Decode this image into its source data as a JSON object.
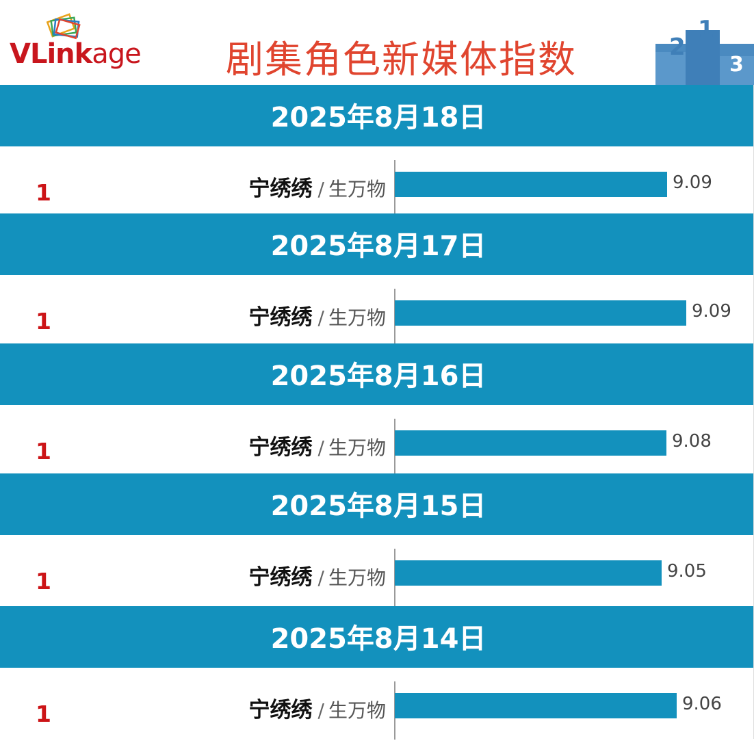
{
  "header": {
    "logo_text_bold": "VLink",
    "logo_text_rest": "age",
    "title": "剧集角色新媒体指数",
    "podium_icon": "podium-icon",
    "podium_digits": [
      "2",
      "1",
      "3"
    ]
  },
  "colors": {
    "band": "#1391bd",
    "bar": "#1391bd",
    "rank": "#cc1417",
    "title": "#e0452f",
    "logo": "#c8161d"
  },
  "chart_data": {
    "type": "bar",
    "orientation": "horizontal",
    "title": "剧集角色新媒体指数",
    "xlim": [
      0,
      9.6
    ],
    "groups": [
      {
        "date": "2025年8月18日",
        "rank": "1",
        "role": "宁绣绣",
        "separator": "/",
        "show": "生万物",
        "value": 9.09,
        "value_label": "9.09"
      },
      {
        "date": "2025年8月17日",
        "rank": "1",
        "role": "宁绣绣",
        "separator": "/",
        "show": "生万物",
        "value": 9.09,
        "value_label": "9.09"
      },
      {
        "date": "2025年8月16日",
        "rank": "1",
        "role": "宁绣绣",
        "separator": "/",
        "show": "生万物",
        "value": 9.08,
        "value_label": "9.08"
      },
      {
        "date": "2025年8月15日",
        "rank": "1",
        "role": "宁绣绣",
        "separator": "/",
        "show": "生万物",
        "value": 9.05,
        "value_label": "9.05"
      },
      {
        "date": "2025年8月14日",
        "rank": "1",
        "role": "宁绣绣",
        "separator": "/",
        "show": "生万物",
        "value": 9.06,
        "value_label": "9.06"
      }
    ]
  }
}
